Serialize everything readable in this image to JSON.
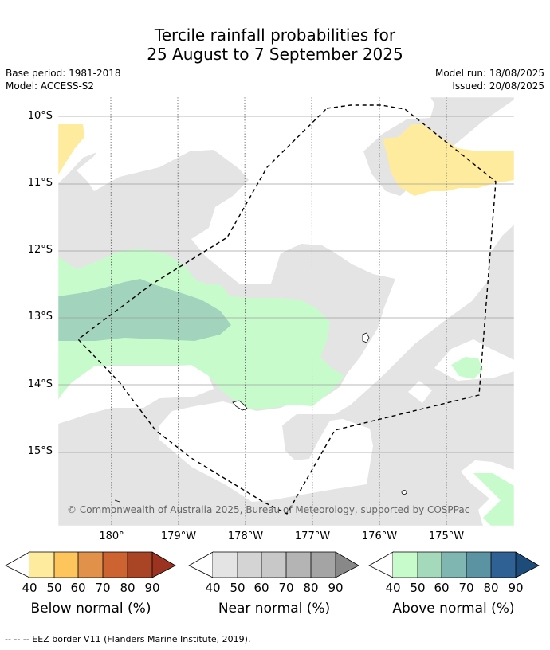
{
  "title": {
    "line1": "Tercile rainfall probabilities for",
    "line2": "25 August to 7 September 2025"
  },
  "meta": {
    "base_period": "Base period: 1981-2018",
    "model": "Model: ACCESS-S2",
    "model_run": "Model run: 18/08/2025",
    "issued": "Issued: 20/08/2025"
  },
  "map": {
    "lat_labels": [
      "10°S",
      "11°S",
      "12°S",
      "13°S",
      "14°S",
      "15°S"
    ],
    "lon_labels": [
      "180°",
      "179°W",
      "178°W",
      "177°W",
      "176°W",
      "175°W"
    ],
    "credit": "© Commonwealth of Australia 2025, Bureau of Meteorology, supported by COSPPac",
    "colors": {
      "near_normal_fill": "#e4e4e4",
      "above_50": "#c8fbcc",
      "above_60": "#a1d3bd",
      "below_50": "#ffeb9d",
      "ocean": "#ffffff",
      "eez_border": "#000000"
    }
  },
  "colorbars": [
    {
      "title": "Below normal (%)",
      "ticks": [
        "40",
        "50",
        "60",
        "70",
        "80",
        "90"
      ],
      "colors": [
        "#ffeb9d",
        "#fdc55c",
        "#e1914a",
        "#cd6331",
        "#a94424",
        "#9c3220"
      ]
    },
    {
      "title": "Near normal (%)",
      "ticks": [
        "40",
        "50",
        "60",
        "70",
        "80",
        "90"
      ],
      "colors": [
        "#e4e4e4",
        "#d4d4d4",
        "#c8c8c8",
        "#b4b4b4",
        "#a4a4a4",
        "#888888"
      ]
    },
    {
      "title": "Above normal (%)",
      "ticks": [
        "40",
        "50",
        "60",
        "70",
        "80",
        "90"
      ],
      "colors": [
        "#c8fbcc",
        "#a5d9bb",
        "#80b6b2",
        "#5b93a2",
        "#306194",
        "#1d4b7a"
      ]
    }
  ],
  "footer": "--  --  -- EEZ border V11 (Flanders Marine Institute, 2019)."
}
